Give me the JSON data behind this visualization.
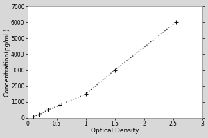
{
  "x_data": [
    0.1,
    0.2,
    0.35,
    0.55,
    1.0,
    1.5,
    2.55
  ],
  "y_data": [
    100,
    200,
    500,
    800,
    1500,
    3000,
    6000
  ],
  "xlabel": "Optical Density",
  "ylabel": "Concentration(pg/mL)",
  "xlim": [
    0,
    3
  ],
  "ylim": [
    0,
    7000
  ],
  "xticks": [
    0,
    0.5,
    1,
    1.5,
    2,
    2.5,
    3
  ],
  "yticks": [
    0,
    1000,
    2000,
    3000,
    4000,
    5000,
    6000,
    7000
  ],
  "line_color": "#333333",
  "marker_color": "#111111",
  "background_color": "#d8d8d8",
  "plot_bg_color": "#ffffff",
  "font_size_label": 6.5,
  "font_size_tick": 5.5,
  "linewidth": 1.0,
  "marker_size": 4,
  "marker_ew": 0.8
}
